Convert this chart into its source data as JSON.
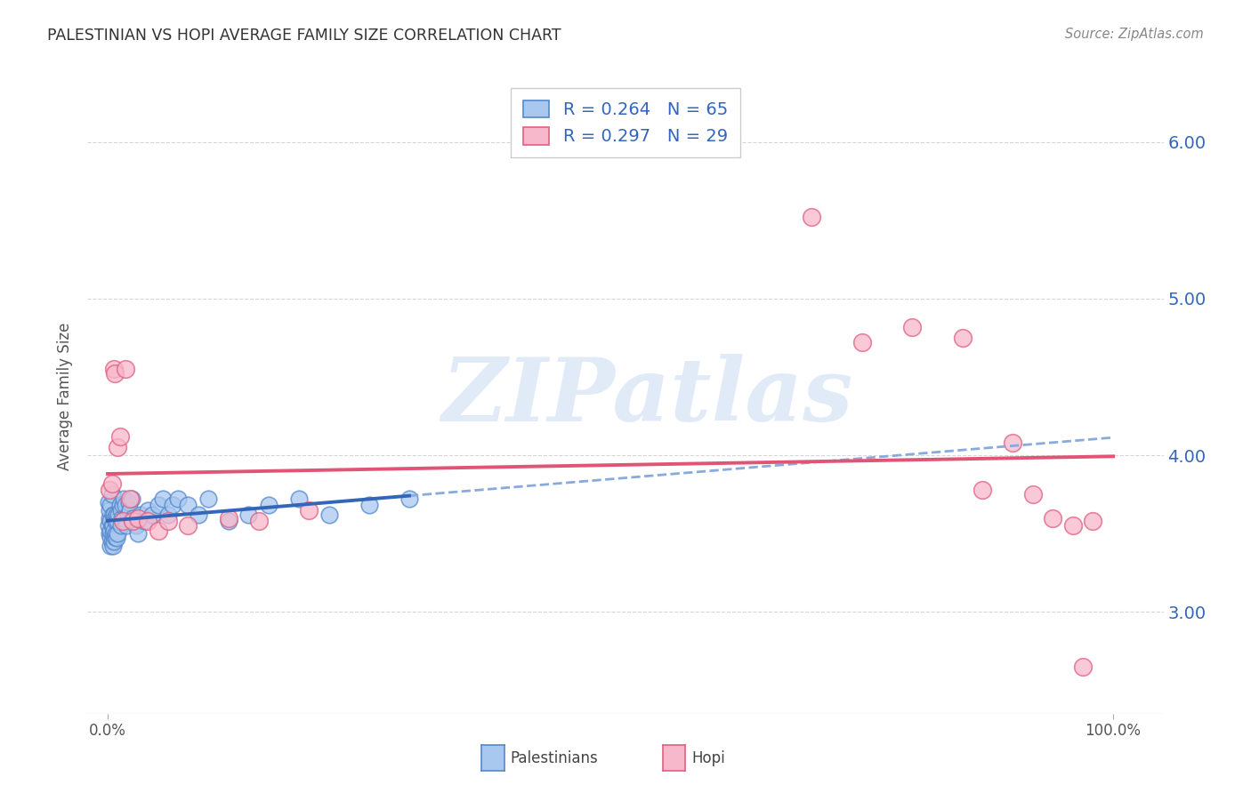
{
  "title": "PALESTINIAN VS HOPI AVERAGE FAMILY SIZE CORRELATION CHART",
  "source": "Source: ZipAtlas.com",
  "ylabel": "Average Family Size",
  "background_color": "#ffffff",
  "grid_color": "#cccccc",
  "watermark": "ZIPatlas",
  "palestinians_color": "#a8c8f0",
  "palestinians_edge": "#5588cc",
  "hopi_color": "#f8b8cc",
  "hopi_edge": "#e06080",
  "trendline_blue": "#3366bb",
  "trendline_pink": "#e05575",
  "trendline_dash_color": "#88aadd",
  "yticks": [
    3.0,
    4.0,
    5.0,
    6.0
  ],
  "ylim": [
    2.35,
    6.4
  ],
  "xlim": [
    -0.02,
    1.05
  ],
  "palestinians_x": [
    0.001,
    0.001,
    0.002,
    0.002,
    0.002,
    0.003,
    0.003,
    0.003,
    0.003,
    0.003,
    0.004,
    0.004,
    0.004,
    0.005,
    0.005,
    0.005,
    0.005,
    0.006,
    0.006,
    0.006,
    0.007,
    0.007,
    0.008,
    0.008,
    0.009,
    0.009,
    0.01,
    0.01,
    0.011,
    0.012,
    0.013,
    0.013,
    0.014,
    0.015,
    0.016,
    0.017,
    0.018,
    0.019,
    0.02,
    0.021,
    0.022,
    0.024,
    0.025,
    0.026,
    0.028,
    0.03,
    0.033,
    0.036,
    0.04,
    0.044,
    0.05,
    0.055,
    0.06,
    0.065,
    0.07,
    0.08,
    0.09,
    0.1,
    0.12,
    0.14,
    0.16,
    0.19,
    0.22,
    0.26,
    0.3
  ],
  "palestinians_y": [
    3.55,
    3.7,
    3.5,
    3.6,
    3.65,
    3.42,
    3.48,
    3.52,
    3.58,
    3.68,
    3.45,
    3.55,
    3.75,
    3.42,
    3.5,
    3.55,
    3.62,
    3.45,
    3.52,
    3.62,
    3.48,
    3.6,
    3.5,
    3.58,
    3.47,
    3.62,
    3.5,
    3.58,
    3.62,
    3.68,
    3.55,
    3.65,
    3.6,
    3.68,
    3.72,
    3.6,
    3.68,
    3.55,
    3.62,
    3.7,
    3.65,
    3.72,
    3.6,
    3.58,
    3.55,
    3.5,
    3.62,
    3.58,
    3.65,
    3.62,
    3.68,
    3.72,
    3.62,
    3.68,
    3.72,
    3.68,
    3.62,
    3.72,
    3.58,
    3.62,
    3.68,
    3.72,
    3.62,
    3.68,
    3.72
  ],
  "hopi_x": [
    0.002,
    0.004,
    0.006,
    0.007,
    0.01,
    0.012,
    0.015,
    0.018,
    0.022,
    0.025,
    0.03,
    0.04,
    0.05,
    0.06,
    0.08,
    0.12,
    0.15,
    0.2,
    0.7,
    0.75,
    0.8,
    0.85,
    0.87,
    0.9,
    0.92,
    0.94,
    0.96,
    0.97,
    0.98
  ],
  "hopi_y": [
    3.78,
    3.82,
    4.55,
    4.52,
    4.05,
    4.12,
    3.58,
    4.55,
    3.72,
    3.58,
    3.6,
    3.58,
    3.52,
    3.58,
    3.55,
    3.6,
    3.58,
    3.65,
    5.52,
    4.72,
    4.82,
    4.75,
    3.78,
    4.08,
    3.75,
    3.6,
    3.55,
    2.65,
    3.58
  ],
  "bottom_label_palestinians": "Palestinians",
  "bottom_label_hopi": "Hopi",
  "legend_text_color": "#3366bb",
  "legend_r1": "R = 0.264",
  "legend_n1": "N = 65",
  "legend_r2": "R = 0.297",
  "legend_n2": "N = 29"
}
